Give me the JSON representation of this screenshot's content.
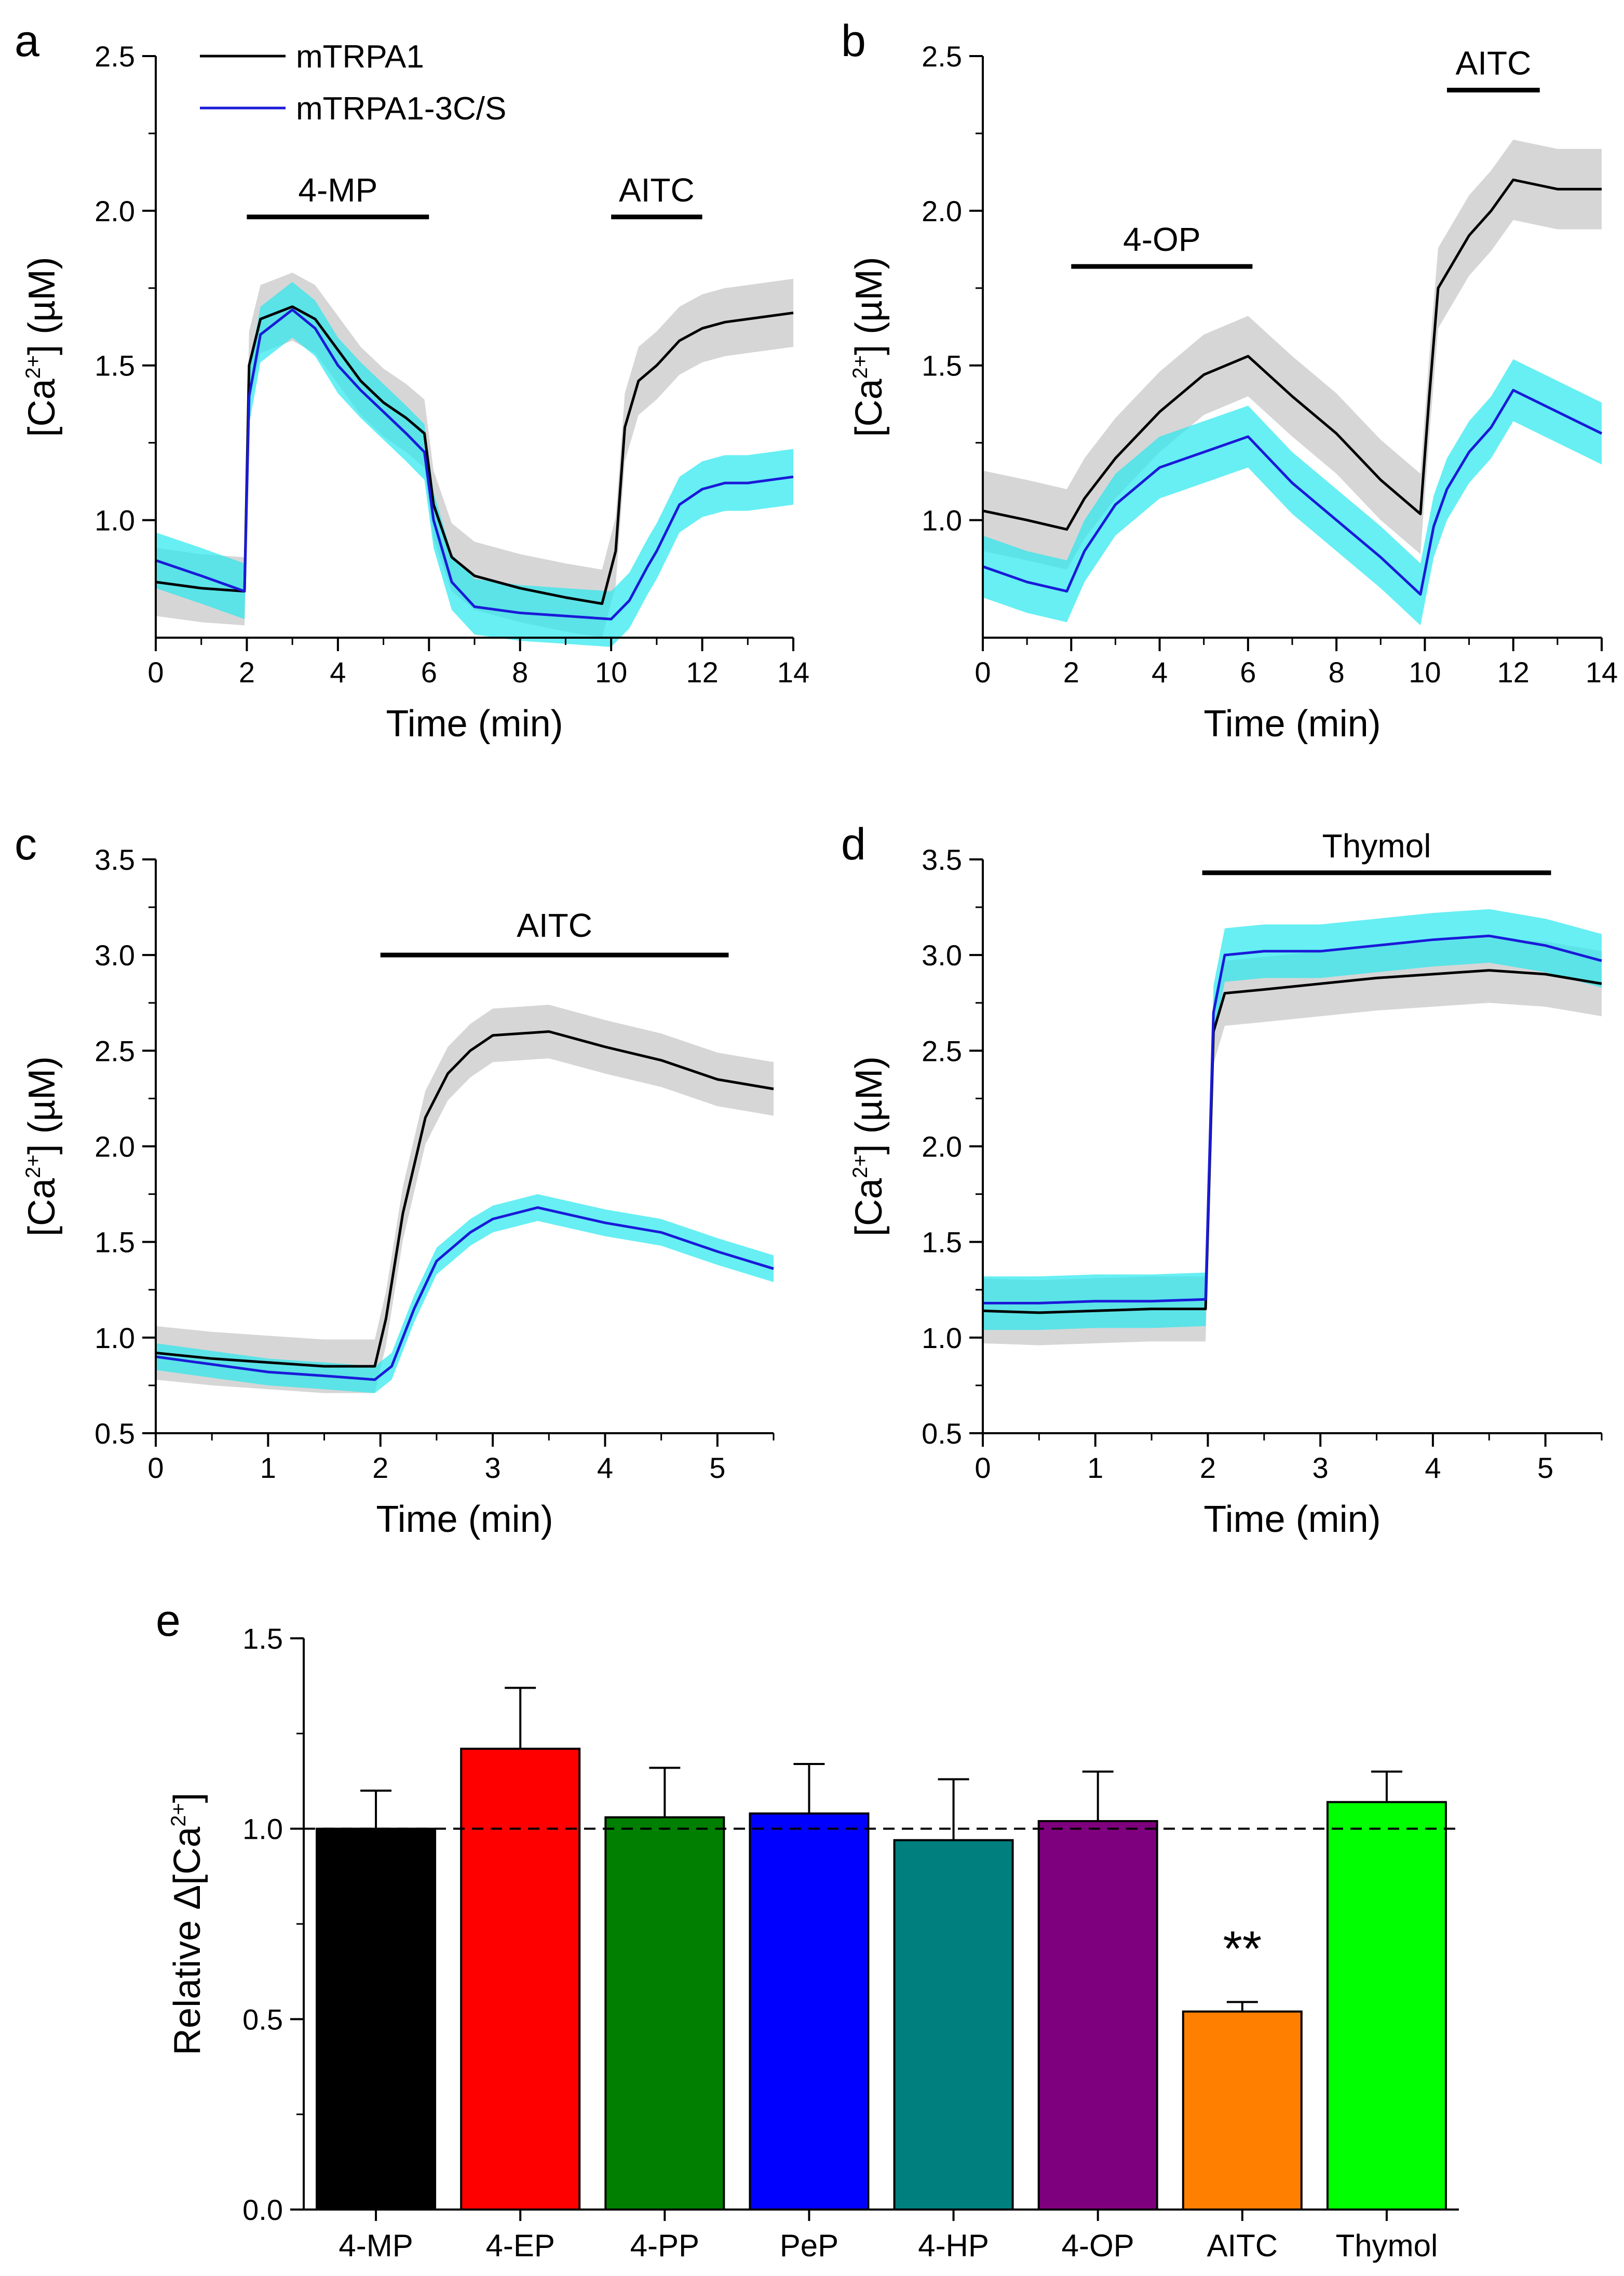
{
  "colors": {
    "wt": "#000000",
    "wt_band": "#c8c8c8",
    "mut": "#1a1ad8",
    "mut_band": "#26e8ee",
    "bars": [
      "#000000",
      "#ff0000",
      "#007f00",
      "#0000ff",
      "#007f7f",
      "#7f007f",
      "#ff7f00",
      "#00ff00"
    ]
  },
  "legend": {
    "wt": "mTRPA1",
    "mut": "mTRPA1-3C/S"
  },
  "chart_data": [
    {
      "id": "a",
      "label": "a",
      "type": "line",
      "xlabel": "Time (min)",
      "ylabel_pre": "[Ca",
      "ylabel_sup": "2+",
      "ylabel_post": "] (µM)",
      "xlim": [
        0,
        14
      ],
      "ylim": [
        0.62,
        2.5
      ],
      "xticks": [
        0,
        2,
        4,
        6,
        8,
        10,
        12,
        14
      ],
      "xtick_labels": [
        "0",
        "2",
        "4",
        "6",
        "8",
        "10",
        "12",
        "14"
      ],
      "yticks": [
        1.0,
        1.5,
        2.0,
        2.5
      ],
      "ytick_labels": [
        "1.0",
        "1.5",
        "2.0",
        "2.5"
      ],
      "bars": [
        {
          "label": "4-MP",
          "start": 2,
          "end": 6,
          "y": 1.98
        },
        {
          "label": "AITC",
          "start": 10,
          "end": 12,
          "y": 1.98
        }
      ],
      "series": [
        {
          "name": "mTRPA1",
          "points": [
            [
              0,
              0.8
            ],
            [
              1,
              0.78
            ],
            [
              1.95,
              0.77
            ],
            [
              2.05,
              1.5
            ],
            [
              2.3,
              1.65
            ],
            [
              3,
              1.69
            ],
            [
              3.5,
              1.65
            ],
            [
              4,
              1.55
            ],
            [
              4.5,
              1.45
            ],
            [
              5,
              1.38
            ],
            [
              5.5,
              1.33
            ],
            [
              5.9,
              1.28
            ],
            [
              6.1,
              1.05
            ],
            [
              6.5,
              0.88
            ],
            [
              7,
              0.82
            ],
            [
              8,
              0.78
            ],
            [
              9,
              0.75
            ],
            [
              9.8,
              0.73
            ],
            [
              10.1,
              0.9
            ],
            [
              10.3,
              1.3
            ],
            [
              10.6,
              1.45
            ],
            [
              11,
              1.5
            ],
            [
              11.5,
              1.58
            ],
            [
              12,
              1.62
            ],
            [
              12.5,
              1.64
            ],
            [
              13,
              1.65
            ],
            [
              14,
              1.67
            ]
          ],
          "err": 0.11
        },
        {
          "name": "mTRPA1-3C/S",
          "points": [
            [
              0,
              0.87
            ],
            [
              1,
              0.82
            ],
            [
              1.95,
              0.77
            ],
            [
              2.05,
              1.4
            ],
            [
              2.3,
              1.6
            ],
            [
              3,
              1.68
            ],
            [
              3.5,
              1.62
            ],
            [
              4,
              1.5
            ],
            [
              4.5,
              1.42
            ],
            [
              5,
              1.35
            ],
            [
              5.5,
              1.28
            ],
            [
              5.9,
              1.22
            ],
            [
              6.1,
              1.0
            ],
            [
              6.5,
              0.8
            ],
            [
              7,
              0.72
            ],
            [
              8,
              0.7
            ],
            [
              9,
              0.69
            ],
            [
              10,
              0.68
            ],
            [
              10.4,
              0.74
            ],
            [
              10.8,
              0.85
            ],
            [
              11,
              0.9
            ],
            [
              11.5,
              1.05
            ],
            [
              12,
              1.1
            ],
            [
              12.5,
              1.12
            ],
            [
              13,
              1.12
            ],
            [
              14,
              1.14
            ]
          ],
          "err": 0.09
        }
      ]
    },
    {
      "id": "b",
      "label": "b",
      "type": "line",
      "xlabel": "Time (min)",
      "ylabel_pre": "[Ca",
      "ylabel_sup": "2+",
      "ylabel_post": "] (µM)",
      "xlim": [
        0,
        14
      ],
      "ylim": [
        0.62,
        2.5
      ],
      "xticks": [
        0,
        2,
        4,
        6,
        8,
        10,
        12,
        14
      ],
      "xtick_labels": [
        "0",
        "2",
        "4",
        "6",
        "8",
        "10",
        "12",
        "14"
      ],
      "yticks": [
        1.0,
        1.5,
        2.0,
        2.5
      ],
      "ytick_labels": [
        "1.0",
        "1.5",
        "2.0",
        "2.5"
      ],
      "bars": [
        {
          "label": "4-OP",
          "start": 2,
          "end": 6.1,
          "y": 1.82
        },
        {
          "label": "AITC",
          "start": 10.5,
          "end": 12.6,
          "y": 2.39
        }
      ],
      "series": [
        {
          "name": "mTRPA1",
          "points": [
            [
              0,
              1.03
            ],
            [
              1,
              1.0
            ],
            [
              1.9,
              0.97
            ],
            [
              2.3,
              1.07
            ],
            [
              3,
              1.2
            ],
            [
              4,
              1.35
            ],
            [
              5,
              1.47
            ],
            [
              6,
              1.53
            ],
            [
              7,
              1.4
            ],
            [
              8,
              1.28
            ],
            [
              9,
              1.13
            ],
            [
              9.9,
              1.02
            ],
            [
              10.1,
              1.4
            ],
            [
              10.3,
              1.75
            ],
            [
              11,
              1.92
            ],
            [
              11.5,
              2.0
            ],
            [
              12,
              2.1
            ],
            [
              13,
              2.07
            ],
            [
              14,
              2.07
            ]
          ],
          "err": 0.13
        },
        {
          "name": "mTRPA1-3C/S",
          "points": [
            [
              0,
              0.85
            ],
            [
              1,
              0.8
            ],
            [
              1.9,
              0.77
            ],
            [
              2.3,
              0.9
            ],
            [
              3,
              1.05
            ],
            [
              4,
              1.17
            ],
            [
              5,
              1.22
            ],
            [
              6,
              1.27
            ],
            [
              7,
              1.12
            ],
            [
              8,
              1.0
            ],
            [
              9,
              0.88
            ],
            [
              9.9,
              0.76
            ],
            [
              10.2,
              0.98
            ],
            [
              10.5,
              1.1
            ],
            [
              11,
              1.22
            ],
            [
              11.5,
              1.3
            ],
            [
              12,
              1.42
            ],
            [
              13,
              1.35
            ],
            [
              14,
              1.28
            ]
          ],
          "err": 0.1
        }
      ]
    },
    {
      "id": "c",
      "label": "c",
      "type": "line",
      "xlabel": "Time (min)",
      "ylabel_pre": "[Ca",
      "ylabel_sup": "2+",
      "ylabel_post": "] (µM)",
      "xlim": [
        0,
        5.5
      ],
      "ylim": [
        0.5,
        3.5
      ],
      "xticks": [
        0,
        1,
        2,
        3,
        4,
        5
      ],
      "xtick_labels": [
        "0",
        "1",
        "2",
        "3",
        "4",
        "5"
      ],
      "yticks": [
        0.5,
        1.0,
        1.5,
        2.0,
        2.5,
        3.0,
        3.5
      ],
      "ytick_labels": [
        "0.5",
        "1.0",
        "1.5",
        "2.0",
        "2.5",
        "3.0",
        "3.5"
      ],
      "bars": [
        {
          "label": "AITC",
          "start": 2,
          "end": 5.1,
          "y": 3.0
        }
      ],
      "series": [
        {
          "name": "mTRPA1",
          "points": [
            [
              0,
              0.92
            ],
            [
              0.5,
              0.89
            ],
            [
              1,
              0.87
            ],
            [
              1.5,
              0.85
            ],
            [
              1.95,
              0.85
            ],
            [
              2.05,
              1.1
            ],
            [
              2.2,
              1.65
            ],
            [
              2.4,
              2.15
            ],
            [
              2.6,
              2.38
            ],
            [
              2.8,
              2.5
            ],
            [
              3,
              2.58
            ],
            [
              3.5,
              2.6
            ],
            [
              4,
              2.52
            ],
            [
              4.5,
              2.45
            ],
            [
              5,
              2.35
            ],
            [
              5.5,
              2.3
            ]
          ],
          "err": 0.14
        },
        {
          "name": "mTRPA1-3C/S",
          "points": [
            [
              0,
              0.9
            ],
            [
              0.5,
              0.86
            ],
            [
              1,
              0.82
            ],
            [
              1.5,
              0.8
            ],
            [
              1.95,
              0.78
            ],
            [
              2.1,
              0.85
            ],
            [
              2.3,
              1.15
            ],
            [
              2.5,
              1.4
            ],
            [
              2.8,
              1.55
            ],
            [
              3,
              1.62
            ],
            [
              3.4,
              1.68
            ],
            [
              4,
              1.6
            ],
            [
              4.5,
              1.55
            ],
            [
              5,
              1.45
            ],
            [
              5.5,
              1.36
            ]
          ],
          "err": 0.07
        }
      ]
    },
    {
      "id": "d",
      "label": "d",
      "type": "line",
      "xlabel": "Time (min)",
      "ylabel_pre": "[Ca",
      "ylabel_sup": "2+",
      "ylabel_post": "] (µM)",
      "xlim": [
        0,
        5.5
      ],
      "ylim": [
        0.5,
        3.5
      ],
      "xticks": [
        0,
        1,
        2,
        3,
        4,
        5
      ],
      "xtick_labels": [
        "0",
        "1",
        "2",
        "3",
        "4",
        "5"
      ],
      "yticks": [
        0.5,
        1.0,
        1.5,
        2.0,
        2.5,
        3.0,
        3.5
      ],
      "ytick_labels": [
        "0.5",
        "1.0",
        "1.5",
        "2.0",
        "2.5",
        "3.0",
        "3.5"
      ],
      "bars": [
        {
          "label": "Thymol",
          "start": 1.95,
          "end": 5.05,
          "y": 3.43
        }
      ],
      "series": [
        {
          "name": "mTRPA1",
          "points": [
            [
              0,
              1.14
            ],
            [
              0.5,
              1.13
            ],
            [
              1,
              1.14
            ],
            [
              1.5,
              1.15
            ],
            [
              1.98,
              1.15
            ],
            [
              2.05,
              2.6
            ],
            [
              2.15,
              2.8
            ],
            [
              2.5,
              2.82
            ],
            [
              3,
              2.85
            ],
            [
              3.5,
              2.88
            ],
            [
              4,
              2.9
            ],
            [
              4.5,
              2.92
            ],
            [
              5,
              2.9
            ],
            [
              5.5,
              2.85
            ]
          ],
          "err": 0.17
        },
        {
          "name": "mTRPA1-3C/S",
          "points": [
            [
              0,
              1.18
            ],
            [
              0.5,
              1.18
            ],
            [
              1,
              1.19
            ],
            [
              1.5,
              1.19
            ],
            [
              1.98,
              1.2
            ],
            [
              2.05,
              2.7
            ],
            [
              2.15,
              3.0
            ],
            [
              2.5,
              3.02
            ],
            [
              3,
              3.02
            ],
            [
              3.5,
              3.05
            ],
            [
              4,
              3.08
            ],
            [
              4.5,
              3.1
            ],
            [
              5,
              3.05
            ],
            [
              5.5,
              2.97
            ]
          ],
          "err": 0.14
        }
      ]
    },
    {
      "id": "e",
      "label": "e",
      "type": "bar",
      "ylabel_pre": "Relative Δ[Ca",
      "ylabel_sup": "2+",
      "ylabel_post": "]",
      "ylim": [
        0,
        1.5
      ],
      "yticks": [
        0.0,
        0.5,
        1.0,
        1.5
      ],
      "ytick_labels": [
        "0.0",
        "0.5",
        "1.0",
        "1.5"
      ],
      "categories": [
        "4-MP",
        "4-EP",
        "4-PP",
        "PeP",
        "4-HP",
        "4-OP",
        "AITC",
        "Thymol"
      ],
      "values": [
        1.0,
        1.21,
        1.03,
        1.04,
        0.97,
        1.02,
        0.52,
        1.07
      ],
      "errors": [
        0.1,
        0.16,
        0.13,
        0.13,
        0.16,
        0.13,
        0.025,
        0.08
      ],
      "reference_line": 1.0,
      "annotations": [
        {
          "category": "AITC",
          "text": "**"
        }
      ]
    }
  ]
}
